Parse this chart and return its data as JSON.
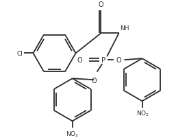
{
  "bg_color": "#ffffff",
  "line_color": "#2a2a2a",
  "line_width": 1.3,
  "figsize": [
    2.57,
    2.05
  ],
  "dpi": 100,
  "xlim": [
    0,
    257
  ],
  "ylim": [
    0,
    205
  ]
}
